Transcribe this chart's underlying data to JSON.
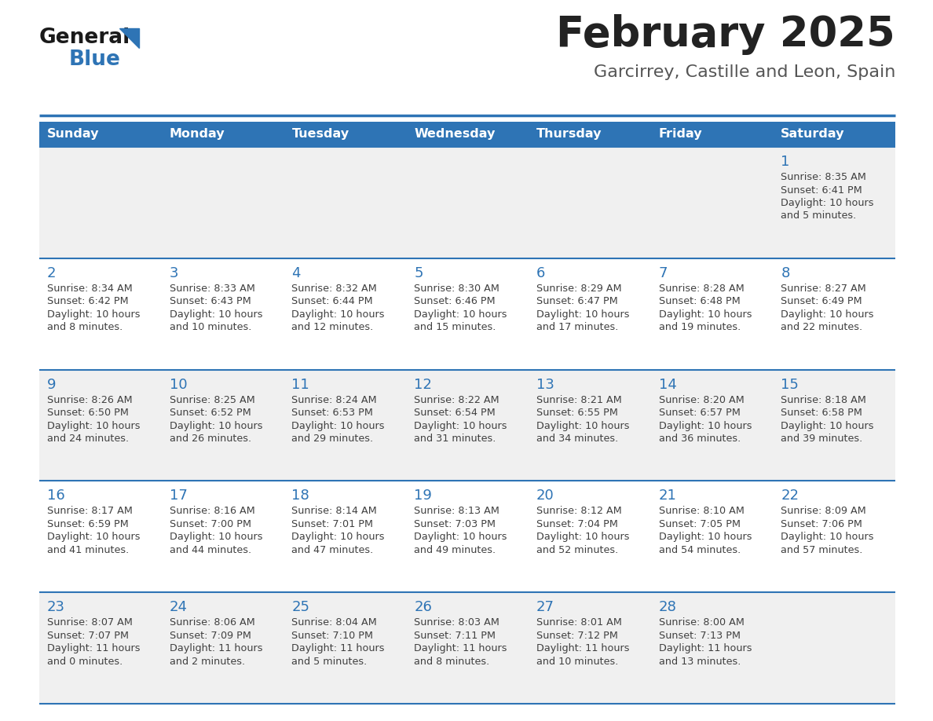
{
  "title": "February 2025",
  "subtitle": "Garcirrey, Castille and Leon, Spain",
  "days_of_week": [
    "Sunday",
    "Monday",
    "Tuesday",
    "Wednesday",
    "Thursday",
    "Friday",
    "Saturday"
  ],
  "header_bg": "#2e74b5",
  "header_text": "#ffffff",
  "row_bg_odd": "#f0f0f0",
  "row_bg_even": "#ffffff",
  "divider_color": "#2e74b5",
  "text_color": "#404040",
  "day_num_color": "#2e74b5",
  "title_color": "#222222",
  "subtitle_color": "#555555",
  "logo_general_color": "#1a1a1a",
  "logo_blue_color": "#2e74b5",
  "logo_triangle_color": "#2e74b5",
  "calendar_data": [
    [
      null,
      null,
      null,
      null,
      null,
      null,
      {
        "day": 1,
        "sunrise": "8:35 AM",
        "sunset": "6:41 PM",
        "daylight": "10 hours\nand 5 minutes."
      }
    ],
    [
      {
        "day": 2,
        "sunrise": "8:34 AM",
        "sunset": "6:42 PM",
        "daylight": "10 hours\nand 8 minutes."
      },
      {
        "day": 3,
        "sunrise": "8:33 AM",
        "sunset": "6:43 PM",
        "daylight": "10 hours\nand 10 minutes."
      },
      {
        "day": 4,
        "sunrise": "8:32 AM",
        "sunset": "6:44 PM",
        "daylight": "10 hours\nand 12 minutes."
      },
      {
        "day": 5,
        "sunrise": "8:30 AM",
        "sunset": "6:46 PM",
        "daylight": "10 hours\nand 15 minutes."
      },
      {
        "day": 6,
        "sunrise": "8:29 AM",
        "sunset": "6:47 PM",
        "daylight": "10 hours\nand 17 minutes."
      },
      {
        "day": 7,
        "sunrise": "8:28 AM",
        "sunset": "6:48 PM",
        "daylight": "10 hours\nand 19 minutes."
      },
      {
        "day": 8,
        "sunrise": "8:27 AM",
        "sunset": "6:49 PM",
        "daylight": "10 hours\nand 22 minutes."
      }
    ],
    [
      {
        "day": 9,
        "sunrise": "8:26 AM",
        "sunset": "6:50 PM",
        "daylight": "10 hours\nand 24 minutes."
      },
      {
        "day": 10,
        "sunrise": "8:25 AM",
        "sunset": "6:52 PM",
        "daylight": "10 hours\nand 26 minutes."
      },
      {
        "day": 11,
        "sunrise": "8:24 AM",
        "sunset": "6:53 PM",
        "daylight": "10 hours\nand 29 minutes."
      },
      {
        "day": 12,
        "sunrise": "8:22 AM",
        "sunset": "6:54 PM",
        "daylight": "10 hours\nand 31 minutes."
      },
      {
        "day": 13,
        "sunrise": "8:21 AM",
        "sunset": "6:55 PM",
        "daylight": "10 hours\nand 34 minutes."
      },
      {
        "day": 14,
        "sunrise": "8:20 AM",
        "sunset": "6:57 PM",
        "daylight": "10 hours\nand 36 minutes."
      },
      {
        "day": 15,
        "sunrise": "8:18 AM",
        "sunset": "6:58 PM",
        "daylight": "10 hours\nand 39 minutes."
      }
    ],
    [
      {
        "day": 16,
        "sunrise": "8:17 AM",
        "sunset": "6:59 PM",
        "daylight": "10 hours\nand 41 minutes."
      },
      {
        "day": 17,
        "sunrise": "8:16 AM",
        "sunset": "7:00 PM",
        "daylight": "10 hours\nand 44 minutes."
      },
      {
        "day": 18,
        "sunrise": "8:14 AM",
        "sunset": "7:01 PM",
        "daylight": "10 hours\nand 47 minutes."
      },
      {
        "day": 19,
        "sunrise": "8:13 AM",
        "sunset": "7:03 PM",
        "daylight": "10 hours\nand 49 minutes."
      },
      {
        "day": 20,
        "sunrise": "8:12 AM",
        "sunset": "7:04 PM",
        "daylight": "10 hours\nand 52 minutes."
      },
      {
        "day": 21,
        "sunrise": "8:10 AM",
        "sunset": "7:05 PM",
        "daylight": "10 hours\nand 54 minutes."
      },
      {
        "day": 22,
        "sunrise": "8:09 AM",
        "sunset": "7:06 PM",
        "daylight": "10 hours\nand 57 minutes."
      }
    ],
    [
      {
        "day": 23,
        "sunrise": "8:07 AM",
        "sunset": "7:07 PM",
        "daylight": "11 hours\nand 0 minutes."
      },
      {
        "day": 24,
        "sunrise": "8:06 AM",
        "sunset": "7:09 PM",
        "daylight": "11 hours\nand 2 minutes."
      },
      {
        "day": 25,
        "sunrise": "8:04 AM",
        "sunset": "7:10 PM",
        "daylight": "11 hours\nand 5 minutes."
      },
      {
        "day": 26,
        "sunrise": "8:03 AM",
        "sunset": "7:11 PM",
        "daylight": "11 hours\nand 8 minutes."
      },
      {
        "day": 27,
        "sunrise": "8:01 AM",
        "sunset": "7:12 PM",
        "daylight": "11 hours\nand 10 minutes."
      },
      {
        "day": 28,
        "sunrise": "8:00 AM",
        "sunset": "7:13 PM",
        "daylight": "11 hours\nand 13 minutes."
      },
      null
    ]
  ]
}
